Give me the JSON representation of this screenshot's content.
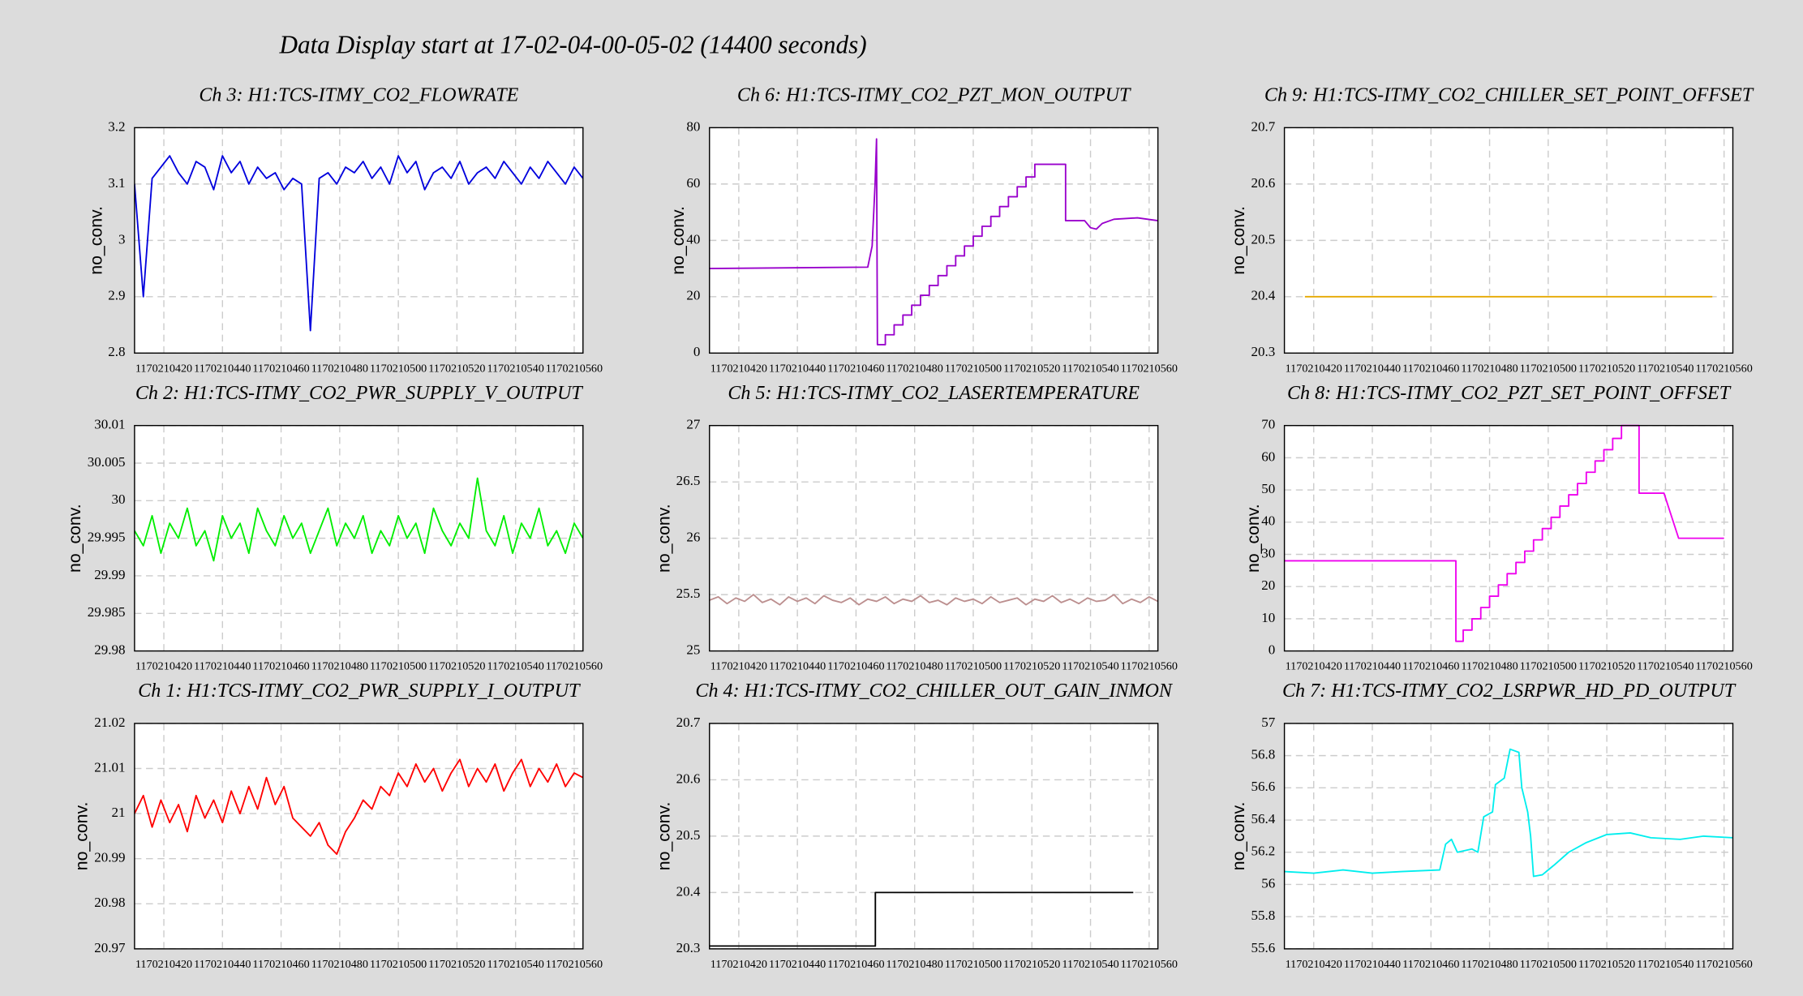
{
  "title": "Data Display start at 17-02-04-00-05-02 (14400 seconds)",
  "chart_data": [
    {
      "type": "line",
      "title": "Ch 3: H1:TCS-ITMY_CO2_FLOWRATE",
      "ylabel": "no_conv.",
      "color": "#0000dd",
      "grid": true,
      "xlim": [
        1170210410,
        1170210563
      ],
      "xticks": [
        1170210420,
        1170210440,
        1170210460,
        1170210480,
        1170210500,
        1170210520,
        1170210540,
        1170210560
      ],
      "ylim": [
        2.8,
        3.2
      ],
      "yticks": [
        2.8,
        2.9,
        3,
        3.1,
        3.2
      ],
      "x": [
        1170210410,
        1170210413,
        1170210416,
        1170210419,
        1170210422,
        1170210425,
        1170210428,
        1170210431,
        1170210434,
        1170210437,
        1170210440,
        1170210443,
        1170210446,
        1170210449,
        1170210452,
        1170210455,
        1170210458,
        1170210461,
        1170210464,
        1170210467,
        1170210470,
        1170210473,
        1170210476,
        1170210479,
        1170210482,
        1170210485,
        1170210488,
        1170210491,
        1170210494,
        1170210497,
        1170210500,
        1170210503,
        1170210506,
        1170210509,
        1170210512,
        1170210515,
        1170210518,
        1170210521,
        1170210524,
        1170210527,
        1170210530,
        1170210533,
        1170210536,
        1170210539,
        1170210542,
        1170210545,
        1170210548,
        1170210551,
        1170210554,
        1170210557,
        1170210560,
        1170210563
      ],
      "values": [
        3.1,
        2.9,
        3.11,
        3.13,
        3.15,
        3.12,
        3.1,
        3.14,
        3.13,
        3.09,
        3.15,
        3.12,
        3.14,
        3.1,
        3.13,
        3.11,
        3.12,
        3.09,
        3.11,
        3.1,
        2.84,
        3.11,
        3.12,
        3.1,
        3.13,
        3.12,
        3.14,
        3.11,
        3.13,
        3.1,
        3.15,
        3.12,
        3.14,
        3.09,
        3.12,
        3.13,
        3.11,
        3.14,
        3.1,
        3.12,
        3.13,
        3.11,
        3.14,
        3.12,
        3.1,
        3.13,
        3.11,
        3.14,
        3.12,
        3.1,
        3.13,
        3.11
      ]
    },
    {
      "type": "line",
      "title": "Ch 6: H1:TCS-ITMY_CO2_PZT_MON_OUTPUT",
      "ylabel": "no_conv.",
      "color": "#9900cc",
      "grid": true,
      "xlim": [
        1170210410,
        1170210563
      ],
      "xticks": [
        1170210420,
        1170210440,
        1170210460,
        1170210480,
        1170210500,
        1170210520,
        1170210540,
        1170210560
      ],
      "ylim": [
        0,
        80
      ],
      "yticks": [
        0,
        20,
        40,
        60,
        80
      ],
      "x": [
        1170210410,
        1170210464,
        1170210465.5,
        1170210466.5,
        1170210467,
        1170210467.3,
        1170210470,
        1170210470,
        1170210473,
        1170210473,
        1170210476,
        1170210476,
        1170210479,
        1170210479,
        1170210482,
        1170210482,
        1170210485,
        1170210485,
        1170210488,
        1170210488,
        1170210491,
        1170210491,
        1170210494,
        1170210494,
        1170210497,
        1170210497,
        1170210500,
        1170210500,
        1170210503,
        1170210503,
        1170210506,
        1170210506,
        1170210509,
        1170210509,
        1170210512,
        1170210512,
        1170210515,
        1170210515,
        1170210518,
        1170210518,
        1170210521,
        1170210521,
        1170210531.5,
        1170210531.5,
        1170210538,
        1170210540,
        1170210542,
        1170210544,
        1170210548,
        1170210556,
        1170210563
      ],
      "values": [
        30,
        30.5,
        38,
        60,
        76,
        3,
        3,
        6.5,
        6.5,
        10,
        10,
        13.5,
        13.5,
        17,
        17,
        20.5,
        20.5,
        24,
        24,
        27.5,
        27.5,
        31,
        31,
        34.5,
        34.5,
        38,
        38,
        41.5,
        41.5,
        45,
        45,
        48.5,
        48.5,
        52,
        52,
        55.5,
        55.5,
        59,
        59,
        62.5,
        62.5,
        67,
        67,
        47,
        47,
        44.5,
        44,
        46,
        47.5,
        48,
        47
      ]
    },
    {
      "type": "line",
      "title": "Ch 9: H1:TCS-ITMY_CO2_CHILLER_SET_POINT_OFFSET",
      "ylabel": "no_conv.",
      "color": "#e6a800",
      "grid": true,
      "xlim": [
        1170210410,
        1170210563
      ],
      "xticks": [
        1170210420,
        1170210440,
        1170210460,
        1170210480,
        1170210500,
        1170210520,
        1170210540,
        1170210560
      ],
      "ylim": [
        20.3,
        20.7
      ],
      "yticks": [
        20.3,
        20.4,
        20.5,
        20.6,
        20.7
      ],
      "x": [
        1170210417,
        1170210556
      ],
      "values": [
        20.4,
        20.4
      ]
    },
    {
      "type": "line",
      "title": "Ch 2: H1:TCS-ITMY_CO2_PWR_SUPPLY_V_OUTPUT",
      "ylabel": "no_conv.",
      "color": "#00ee00",
      "grid": true,
      "xlim": [
        1170210410,
        1170210563
      ],
      "xticks": [
        1170210420,
        1170210440,
        1170210460,
        1170210480,
        1170210500,
        1170210520,
        1170210540,
        1170210560
      ],
      "ylim": [
        29.98,
        30.01
      ],
      "yticks": [
        29.98,
        29.985,
        29.99,
        29.995,
        30,
        30.005,
        30.01
      ],
      "x": [
        1170210410,
        1170210413,
        1170210416,
        1170210419,
        1170210422,
        1170210425,
        1170210428,
        1170210431,
        1170210434,
        1170210437,
        1170210440,
        1170210443,
        1170210446,
        1170210449,
        1170210452,
        1170210455,
        1170210458,
        1170210461,
        1170210464,
        1170210467,
        1170210470,
        1170210473,
        1170210476,
        1170210479,
        1170210482,
        1170210485,
        1170210488,
        1170210491,
        1170210494,
        1170210497,
        1170210500,
        1170210503,
        1170210506,
        1170210509,
        1170210512,
        1170210515,
        1170210518,
        1170210521,
        1170210524,
        1170210527,
        1170210530,
        1170210533,
        1170210536,
        1170210539,
        1170210542,
        1170210545,
        1170210548,
        1170210551,
        1170210554,
        1170210557,
        1170210560,
        1170210563
      ],
      "values": [
        29.996,
        29.994,
        29.998,
        29.993,
        29.997,
        29.995,
        29.999,
        29.994,
        29.996,
        29.992,
        29.998,
        29.995,
        29.997,
        29.993,
        29.999,
        29.996,
        29.994,
        29.998,
        29.995,
        29.997,
        29.993,
        29.996,
        29.999,
        29.994,
        29.997,
        29.995,
        29.998,
        29.993,
        29.996,
        29.994,
        29.998,
        29.995,
        29.997,
        29.993,
        29.999,
        29.996,
        29.994,
        29.997,
        29.995,
        30.003,
        29.996,
        29.994,
        29.998,
        29.993,
        29.997,
        29.995,
        29.999,
        29.994,
        29.996,
        29.993,
        29.997,
        29.995
      ]
    },
    {
      "type": "line",
      "title": "Ch 5: H1:TCS-ITMY_CO2_LASERTEMPERATURE",
      "ylabel": "no_conv.",
      "color": "#bc8f8f",
      "grid": true,
      "xlim": [
        1170210410,
        1170210563
      ],
      "xticks": [
        1170210420,
        1170210440,
        1170210460,
        1170210480,
        1170210500,
        1170210520,
        1170210540,
        1170210560
      ],
      "ylim": [
        25,
        27
      ],
      "yticks": [
        25,
        25.5,
        26,
        26.5,
        27
      ],
      "x": [
        1170210410,
        1170210413,
        1170210416,
        1170210419,
        1170210422,
        1170210425,
        1170210428,
        1170210431,
        1170210434,
        1170210437,
        1170210440,
        1170210443,
        1170210446,
        1170210449,
        1170210452,
        1170210455,
        1170210458,
        1170210461,
        1170210464,
        1170210467,
        1170210470,
        1170210473,
        1170210476,
        1170210479,
        1170210482,
        1170210485,
        1170210488,
        1170210491,
        1170210494,
        1170210497,
        1170210500,
        1170210503,
        1170210506,
        1170210509,
        1170210512,
        1170210515,
        1170210518,
        1170210521,
        1170210524,
        1170210527,
        1170210530,
        1170210533,
        1170210536,
        1170210539,
        1170210542,
        1170210545,
        1170210548,
        1170210551,
        1170210554,
        1170210557,
        1170210560,
        1170210563
      ],
      "values": [
        25.45,
        25.48,
        25.42,
        25.47,
        25.44,
        25.5,
        25.43,
        25.46,
        25.41,
        25.48,
        25.44,
        25.47,
        25.42,
        25.49,
        25.45,
        25.43,
        25.47,
        25.41,
        25.46,
        25.44,
        25.48,
        25.42,
        25.46,
        25.44,
        25.49,
        25.43,
        25.45,
        25.41,
        25.47,
        25.44,
        25.46,
        25.42,
        25.48,
        25.43,
        25.45,
        25.47,
        25.41,
        25.46,
        25.44,
        25.49,
        25.43,
        25.46,
        25.42,
        25.47,
        25.44,
        25.45,
        25.5,
        25.42,
        25.46,
        25.43,
        25.48,
        25.44
      ]
    },
    {
      "type": "line",
      "title": "Ch 8: H1:TCS-ITMY_CO2_PZT_SET_POINT_OFFSET",
      "ylabel": "no_conv.",
      "color": "#ee00ee",
      "grid": true,
      "xlim": [
        1170210410,
        1170210563
      ],
      "xticks": [
        1170210420,
        1170210440,
        1170210460,
        1170210480,
        1170210500,
        1170210520,
        1170210540,
        1170210560
      ],
      "ylim": [
        0,
        70
      ],
      "yticks": [
        0,
        10,
        20,
        30,
        40,
        50,
        60,
        70
      ],
      "x": [
        1170210410,
        1170210468.5,
        1170210468.5,
        1170210471,
        1170210471,
        1170210474,
        1170210474,
        1170210477,
        1170210477,
        1170210480,
        1170210480,
        1170210483,
        1170210483,
        1170210486,
        1170210486,
        1170210489,
        1170210489,
        1170210492,
        1170210492,
        1170210495,
        1170210495,
        1170210498,
        1170210498,
        1170210501,
        1170210501,
        1170210504,
        1170210504,
        1170210507,
        1170210507,
        1170210510,
        1170210510,
        1170210513,
        1170210513,
        1170210516,
        1170210516,
        1170210519,
        1170210519,
        1170210522,
        1170210522,
        1170210525,
        1170210525,
        1170210531,
        1170210531,
        1170210539.5,
        1170210544.5,
        1170210560
      ],
      "values": [
        28,
        28,
        3,
        3,
        6.5,
        6.5,
        10,
        10,
        13.5,
        13.5,
        17,
        17,
        20.5,
        20.5,
        24,
        24,
        27.5,
        27.5,
        31,
        31,
        34.5,
        34.5,
        38,
        38,
        41.5,
        41.5,
        45,
        45,
        48.5,
        48.5,
        52,
        52,
        55.5,
        55.5,
        59,
        59,
        62.5,
        62.5,
        66,
        66,
        70,
        70,
        49,
        49,
        35,
        35
      ]
    },
    {
      "type": "line",
      "title": "Ch 1: H1:TCS-ITMY_CO2_PWR_SUPPLY_I_OUTPUT",
      "ylabel": "no_conv.",
      "color": "#ff0000",
      "grid": true,
      "xlim": [
        1170210410,
        1170210563
      ],
      "xticks": [
        1170210420,
        1170210440,
        1170210460,
        1170210480,
        1170210500,
        1170210520,
        1170210540,
        1170210560
      ],
      "ylim": [
        20.97,
        21.02
      ],
      "yticks": [
        20.97,
        20.98,
        20.99,
        21,
        21.01,
        21.02
      ],
      "x": [
        1170210410,
        1170210413,
        1170210416,
        1170210419,
        1170210422,
        1170210425,
        1170210428,
        1170210431,
        1170210434,
        1170210437,
        1170210440,
        1170210443,
        1170210446,
        1170210449,
        1170210452,
        1170210455,
        1170210458,
        1170210461,
        1170210464,
        1170210467,
        1170210470,
        1170210473,
        1170210476,
        1170210479,
        1170210482,
        1170210485,
        1170210488,
        1170210491,
        1170210494,
        1170210497,
        1170210500,
        1170210503,
        1170210506,
        1170210509,
        1170210512,
        1170210515,
        1170210518,
        1170210521,
        1170210524,
        1170210527,
        1170210530,
        1170210533,
        1170210536,
        1170210539,
        1170210542,
        1170210545,
        1170210548,
        1170210551,
        1170210554,
        1170210557,
        1170210560,
        1170210563
      ],
      "values": [
        21.0,
        21.004,
        20.997,
        21.003,
        20.998,
        21.002,
        20.996,
        21.004,
        20.999,
        21.003,
        20.998,
        21.005,
        21.0,
        21.006,
        21.001,
        21.008,
        21.002,
        21.006,
        20.999,
        20.997,
        20.995,
        20.998,
        20.993,
        20.991,
        20.996,
        20.999,
        21.003,
        21.001,
        21.006,
        21.004,
        21.009,
        21.006,
        21.011,
        21.007,
        21.01,
        21.005,
        21.009,
        21.012,
        21.006,
        21.01,
        21.007,
        21.011,
        21.005,
        21.009,
        21.012,
        21.006,
        21.01,
        21.007,
        21.011,
        21.006,
        21.009,
        21.008
      ]
    },
    {
      "type": "line",
      "title": "Ch 4: H1:TCS-ITMY_CO2_CHILLER_OUT_GAIN_INMON",
      "ylabel": "no_conv.",
      "color": "#000000",
      "grid": true,
      "xlim": [
        1170210410,
        1170210563
      ],
      "xticks": [
        1170210420,
        1170210440,
        1170210460,
        1170210480,
        1170210500,
        1170210520,
        1170210540,
        1170210560
      ],
      "ylim": [
        20.3,
        20.7
      ],
      "yticks": [
        20.3,
        20.4,
        20.5,
        20.6,
        20.7
      ],
      "x": [
        1170210410,
        1170210466.6,
        1170210466.6,
        1170210554.6
      ],
      "values": [
        20.305,
        20.305,
        20.4,
        20.4
      ]
    },
    {
      "type": "line",
      "title": "Ch 7: H1:TCS-ITMY_CO2_LSRPWR_HD_PD_OUTPUT",
      "ylabel": "no_conv.",
      "color": "#00eeee",
      "grid": true,
      "xlim": [
        1170210410,
        1170210563
      ],
      "xticks": [
        1170210420,
        1170210440,
        1170210460,
        1170210480,
        1170210500,
        1170210520,
        1170210540,
        1170210560
      ],
      "ylim": [
        55.6,
        57
      ],
      "yticks": [
        55.6,
        55.8,
        56,
        56.2,
        56.4,
        56.6,
        56.8,
        57
      ],
      "x": [
        1170210410,
        1170210420,
        1170210430,
        1170210440,
        1170210450,
        1170210463,
        1170210465,
        1170210467,
        1170210469,
        1170210474,
        1170210476,
        1170210478,
        1170210481,
        1170210482,
        1170210485,
        1170210487,
        1170210490,
        1170210491,
        1170210493,
        1170210494,
        1170210495,
        1170210498,
        1170210502,
        1170210507,
        1170210513,
        1170210520,
        1170210528,
        1170210535,
        1170210545,
        1170210553,
        1170210563
      ],
      "values": [
        56.08,
        56.07,
        56.09,
        56.07,
        56.08,
        56.09,
        56.25,
        56.28,
        56.2,
        56.22,
        56.2,
        56.42,
        56.45,
        56.62,
        56.66,
        56.84,
        56.82,
        56.6,
        56.45,
        56.3,
        56.05,
        56.06,
        56.12,
        56.2,
        56.26,
        56.31,
        56.32,
        56.29,
        56.28,
        56.3,
        56.29
      ]
    }
  ]
}
